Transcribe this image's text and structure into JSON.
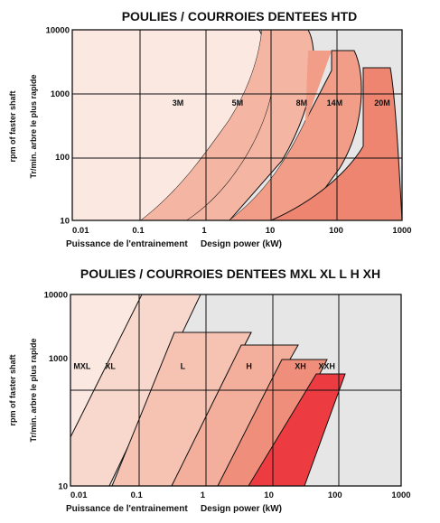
{
  "chart_data": [
    {
      "type": "area",
      "title": "POULIES / COURROIES DENTEES HTD",
      "xlabel_fr": "Puissance de l'entrainement",
      "xlabel_en": "Design power (kW)",
      "ylabel_en": "rpm of faster shaft",
      "ylabel_fr": "Tr/min. arbre le plus rapide",
      "x_scale": "log",
      "y_scale": "log",
      "xlim": [
        0.01,
        1000
      ],
      "ylim": [
        10,
        10000
      ],
      "x_tick_labels": [
        "0.01",
        "0.1",
        "1",
        "10",
        "100",
        "1000"
      ],
      "y_tick_labels": [
        "10",
        "100",
        "1000",
        "10000"
      ],
      "grid": true,
      "regions": [
        {
          "name": "3M",
          "color": "#fbe8e1"
        },
        {
          "name": "5M",
          "color": "#f8d0c3"
        },
        {
          "name": "8M",
          "color": "#f4b5a3"
        },
        {
          "name": "14M",
          "color": "#f19d87"
        },
        {
          "name": "20M",
          "color": "#ed8570"
        }
      ],
      "label_positions": [
        {
          "name": "3M",
          "x": 0.4,
          "y": 700
        },
        {
          "name": "5M",
          "x": 3.2,
          "y": 700
        },
        {
          "name": "8M",
          "x": 30,
          "y": 700
        },
        {
          "name": "14M",
          "x": 95,
          "y": 700
        },
        {
          "name": "20M",
          "x": 500,
          "y": 700
        }
      ]
    },
    {
      "type": "area",
      "title": "POULIES / COURROIES DENTEES MXL XL L H XH",
      "xlabel_fr": "Puissance de l'entrainement",
      "xlabel_en": "Design power (kW)",
      "ylabel_en": "rpm of faster shaft",
      "ylabel_fr": "Tr/min. arbre le plus rapide",
      "x_scale": "log",
      "y_scale": "log",
      "xlim": [
        0.01,
        1000
      ],
      "ylim": [
        10,
        10000
      ],
      "x_tick_labels": [
        "0.01",
        "0.1",
        "1",
        "10",
        "100",
        "1000"
      ],
      "y_tick_labels": [
        "10",
        "1000",
        "10000"
      ],
      "grid": true,
      "regions": [
        {
          "name": "MXL",
          "color": "#fbe8e1"
        },
        {
          "name": "XL",
          "color": "#f8d8cc"
        },
        {
          "name": "L",
          "color": "#f6c3b3"
        },
        {
          "name": "H",
          "color": "#f3af9c"
        },
        {
          "name": "XH",
          "color": "#ef8f7b"
        },
        {
          "name": "XXH",
          "color": "#ec3c42"
        }
      ],
      "label_positions": [
        {
          "name": "MXL",
          "x": 0.015,
          "y": 750
        },
        {
          "name": "XL",
          "x": 0.04,
          "y": 750
        },
        {
          "name": "L",
          "x": 0.5,
          "y": 750
        },
        {
          "name": "H",
          "x": 5,
          "y": 750
        },
        {
          "name": "XH",
          "x": 30,
          "y": 750
        },
        {
          "name": "XXH",
          "x": 75,
          "y": 750
        }
      ]
    }
  ]
}
